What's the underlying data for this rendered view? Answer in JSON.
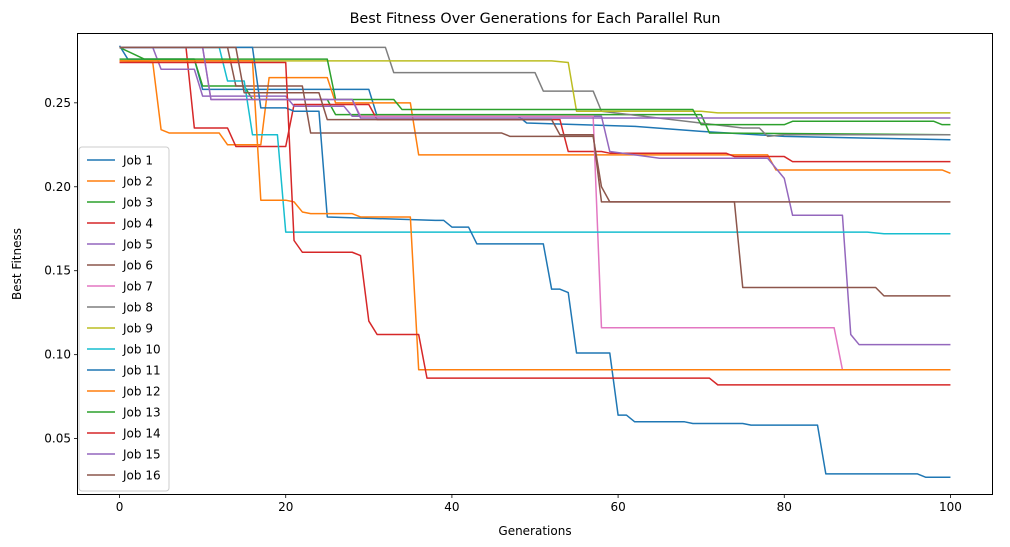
{
  "chart_data": {
    "type": "line",
    "title": "Best Fitness Over Generations for Each Parallel Run",
    "xlabel": "Generations",
    "ylabel": "Best Fitness",
    "xlim": [
      -5,
      105
    ],
    "ylim": [
      0.017,
      0.291
    ],
    "xticks": [
      0,
      20,
      40,
      60,
      80,
      100
    ],
    "xtick_labels": [
      "0",
      "20",
      "40",
      "60",
      "80",
      "100"
    ],
    "yticks": [
      0.05,
      0.1,
      0.15,
      0.2,
      0.25
    ],
    "ytick_labels": [
      "0.05",
      "0.10",
      "0.15",
      "0.20",
      "0.25"
    ],
    "grid": false,
    "legend_position": "center-left",
    "series": [
      {
        "name": "Job 1",
        "color": "#1f77b4",
        "points": [
          [
            0,
            0.284
          ],
          [
            1,
            0.276
          ],
          [
            9,
            0.276
          ],
          [
            10,
            0.258
          ],
          [
            30,
            0.258
          ],
          [
            31,
            0.242
          ],
          [
            48,
            0.242
          ],
          [
            49,
            0.238
          ],
          [
            62,
            0.236
          ],
          [
            70,
            0.233
          ],
          [
            80,
            0.23
          ],
          [
            90,
            0.229
          ],
          [
            100,
            0.228
          ]
        ]
      },
      {
        "name": "Job 2",
        "color": "#ff7f0e",
        "points": [
          [
            0,
            0.275
          ],
          [
            4,
            0.274
          ],
          [
            5,
            0.234
          ],
          [
            6,
            0.232
          ],
          [
            12,
            0.232
          ],
          [
            13,
            0.225
          ],
          [
            17,
            0.225
          ],
          [
            18,
            0.265
          ],
          [
            25,
            0.265
          ],
          [
            26,
            0.25
          ],
          [
            35,
            0.25
          ],
          [
            36,
            0.219
          ],
          [
            50,
            0.219
          ],
          [
            60,
            0.219
          ],
          [
            78,
            0.219
          ],
          [
            79,
            0.21
          ],
          [
            99,
            0.21
          ],
          [
            100,
            0.208
          ]
        ]
      },
      {
        "name": "Job 3",
        "color": "#2ca02c",
        "points": [
          [
            0,
            0.283
          ],
          [
            3,
            0.276
          ],
          [
            9,
            0.276
          ],
          [
            10,
            0.26
          ],
          [
            15,
            0.26
          ],
          [
            16,
            0.252
          ],
          [
            25,
            0.252
          ],
          [
            26,
            0.243
          ],
          [
            70,
            0.243
          ],
          [
            71,
            0.232
          ],
          [
            100,
            0.231
          ]
        ]
      },
      {
        "name": "Job 4",
        "color": "#d62728",
        "points": [
          [
            0,
            0.283
          ],
          [
            8,
            0.283
          ],
          [
            9,
            0.235
          ],
          [
            13,
            0.235
          ],
          [
            14,
            0.224
          ],
          [
            20,
            0.224
          ],
          [
            21,
            0.249
          ],
          [
            30,
            0.249
          ],
          [
            31,
            0.24
          ],
          [
            53,
            0.24
          ],
          [
            54,
            0.221
          ],
          [
            58,
            0.221
          ],
          [
            59,
            0.22
          ],
          [
            73,
            0.22
          ],
          [
            74,
            0.218
          ],
          [
            80,
            0.218
          ],
          [
            81,
            0.215
          ],
          [
            100,
            0.215
          ]
        ]
      },
      {
        "name": "Job 5",
        "color": "#9467bd",
        "points": [
          [
            0,
            0.283
          ],
          [
            4,
            0.283
          ],
          [
            5,
            0.27
          ],
          [
            9,
            0.27
          ],
          [
            10,
            0.254
          ],
          [
            20,
            0.254
          ],
          [
            21,
            0.248
          ],
          [
            27,
            0.248
          ],
          [
            28,
            0.242
          ],
          [
            58,
            0.242
          ],
          [
            59,
            0.221
          ],
          [
            62,
            0.219
          ],
          [
            65,
            0.217
          ],
          [
            78,
            0.217
          ],
          [
            80,
            0.205
          ],
          [
            81,
            0.183
          ],
          [
            86,
            0.183
          ],
          [
            87,
            0.183
          ],
          [
            88,
            0.112
          ],
          [
            89,
            0.106
          ],
          [
            100,
            0.106
          ]
        ]
      },
      {
        "name": "Job 6",
        "color": "#8c564b",
        "points": [
          [
            0,
            0.283
          ],
          [
            13,
            0.283
          ],
          [
            14,
            0.26
          ],
          [
            22,
            0.26
          ],
          [
            23,
            0.232
          ],
          [
            46,
            0.232
          ],
          [
            47,
            0.23
          ],
          [
            57,
            0.23
          ],
          [
            58,
            0.2
          ],
          [
            59,
            0.191
          ],
          [
            100,
            0.191
          ]
        ]
      },
      {
        "name": "Job 7",
        "color": "#e377c2",
        "points": [
          [
            0,
            0.283
          ],
          [
            10,
            0.283
          ],
          [
            11,
            0.252
          ],
          [
            28,
            0.252
          ],
          [
            29,
            0.242
          ],
          [
            57,
            0.242
          ],
          [
            58,
            0.116
          ],
          [
            86,
            0.116
          ],
          [
            87,
            0.091
          ],
          [
            100,
            0.091
          ]
        ]
      },
      {
        "name": "Job 8",
        "color": "#7f7f7f",
        "points": [
          [
            0,
            0.283
          ],
          [
            32,
            0.283
          ],
          [
            33,
            0.268
          ],
          [
            50,
            0.268
          ],
          [
            51,
            0.257
          ],
          [
            57,
            0.257
          ],
          [
            58,
            0.245
          ],
          [
            75,
            0.235
          ],
          [
            77,
            0.235
          ],
          [
            78,
            0.23
          ],
          [
            80,
            0.231
          ],
          [
            100,
            0.231
          ]
        ]
      },
      {
        "name": "Job 9",
        "color": "#bcbd22",
        "points": [
          [
            0,
            0.275
          ],
          [
            52,
            0.275
          ],
          [
            54,
            0.274
          ],
          [
            55,
            0.245
          ],
          [
            70,
            0.245
          ],
          [
            72,
            0.244
          ],
          [
            100,
            0.244
          ]
        ]
      },
      {
        "name": "Job 10",
        "color": "#17becf",
        "points": [
          [
            0,
            0.283
          ],
          [
            12,
            0.283
          ],
          [
            13,
            0.263
          ],
          [
            15,
            0.263
          ],
          [
            16,
            0.231
          ],
          [
            19,
            0.231
          ],
          [
            20,
            0.173
          ],
          [
            90,
            0.173
          ],
          [
            92,
            0.172
          ],
          [
            100,
            0.172
          ]
        ]
      },
      {
        "name": "Job 11",
        "color": "#1f77b4",
        "points": [
          [
            0,
            0.283
          ],
          [
            16,
            0.283
          ],
          [
            17,
            0.247
          ],
          [
            20,
            0.247
          ],
          [
            21,
            0.245
          ],
          [
            24,
            0.245
          ],
          [
            25,
            0.182
          ],
          [
            38,
            0.18
          ],
          [
            39,
            0.18
          ],
          [
            40,
            0.176
          ],
          [
            42,
            0.176
          ],
          [
            43,
            0.166
          ],
          [
            51,
            0.166
          ],
          [
            52,
            0.139
          ],
          [
            53,
            0.139
          ],
          [
            54,
            0.137
          ],
          [
            55,
            0.101
          ],
          [
            59,
            0.101
          ],
          [
            60,
            0.064
          ],
          [
            61,
            0.064
          ],
          [
            62,
            0.06
          ],
          [
            68,
            0.06
          ],
          [
            69,
            0.059
          ],
          [
            75,
            0.059
          ],
          [
            76,
            0.058
          ],
          [
            84,
            0.058
          ],
          [
            85,
            0.029
          ],
          [
            96,
            0.029
          ],
          [
            97,
            0.027
          ],
          [
            100,
            0.027
          ]
        ]
      },
      {
        "name": "Job 12",
        "color": "#ff7f0e",
        "points": [
          [
            0,
            0.275
          ],
          [
            16,
            0.275
          ],
          [
            17,
            0.192
          ],
          [
            20,
            0.192
          ],
          [
            21,
            0.191
          ],
          [
            22,
            0.185
          ],
          [
            23,
            0.184
          ],
          [
            28,
            0.184
          ],
          [
            29,
            0.182
          ],
          [
            35,
            0.182
          ],
          [
            36,
            0.091
          ],
          [
            100,
            0.091
          ]
        ]
      },
      {
        "name": "Job 13",
        "color": "#2ca02c",
        "points": [
          [
            0,
            0.276
          ],
          [
            25,
            0.276
          ],
          [
            26,
            0.252
          ],
          [
            33,
            0.252
          ],
          [
            34,
            0.246
          ],
          [
            69,
            0.246
          ],
          [
            70,
            0.237
          ],
          [
            80,
            0.237
          ],
          [
            81,
            0.239
          ],
          [
            98,
            0.239
          ],
          [
            99,
            0.237
          ],
          [
            100,
            0.237
          ]
        ]
      },
      {
        "name": "Job 14",
        "color": "#d62728",
        "points": [
          [
            0,
            0.274
          ],
          [
            18,
            0.274
          ],
          [
            20,
            0.274
          ],
          [
            21,
            0.168
          ],
          [
            22,
            0.161
          ],
          [
            28,
            0.161
          ],
          [
            29,
            0.159
          ],
          [
            30,
            0.12
          ],
          [
            31,
            0.112
          ],
          [
            35,
            0.112
          ],
          [
            36,
            0.112
          ],
          [
            37,
            0.086
          ],
          [
            71,
            0.086
          ],
          [
            72,
            0.082
          ],
          [
            100,
            0.082
          ]
        ]
      },
      {
        "name": "Job 15",
        "color": "#9467bd",
        "points": [
          [
            0,
            0.283
          ],
          [
            10,
            0.283
          ],
          [
            11,
            0.252
          ],
          [
            28,
            0.252
          ],
          [
            29,
            0.241
          ],
          [
            100,
            0.241
          ]
        ]
      },
      {
        "name": "Job 16",
        "color": "#8c564b",
        "points": [
          [
            0,
            0.283
          ],
          [
            14,
            0.283
          ],
          [
            15,
            0.256
          ],
          [
            24,
            0.256
          ],
          [
            25,
            0.24
          ],
          [
            52,
            0.24
          ],
          [
            53,
            0.231
          ],
          [
            57,
            0.231
          ],
          [
            58,
            0.191
          ],
          [
            73,
            0.191
          ],
          [
            74,
            0.191
          ],
          [
            75,
            0.14
          ],
          [
            91,
            0.14
          ],
          [
            92,
            0.135
          ],
          [
            100,
            0.135
          ]
        ]
      }
    ]
  }
}
